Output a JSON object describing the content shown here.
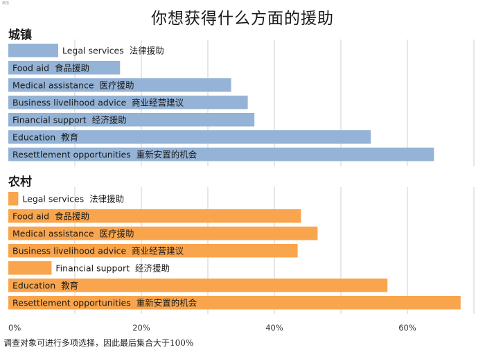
{
  "corner_mark": "典范",
  "footnote": "调查对象可进行多项选择，因此最后集合大于100%",
  "chart_data": [
    {
      "type": "bar",
      "orientation": "horizontal",
      "title": "你想获得什么方面的援助",
      "panel": "城镇",
      "color": "#94b3d6",
      "categories": [
        "Legal services  法律援助",
        "Food aid  食品援助",
        "Medical assistance  医疗援助",
        "Business livelihood advice  商业经营建议",
        "Financial support  经济援助",
        "Education  教育",
        "Resettlement opportunities  重新安置的机会"
      ],
      "label_inside": [
        false,
        true,
        true,
        true,
        true,
        true,
        true
      ],
      "values": [
        7.5,
        16.8,
        33.5,
        36,
        37,
        54.5,
        64
      ],
      "xlim": [
        0,
        70
      ],
      "grid": true
    },
    {
      "type": "bar",
      "orientation": "horizontal",
      "panel": "农村",
      "color": "#f9a54d",
      "categories": [
        "Legal services  法律援助",
        "Food aid  食品援助",
        "Medical assistance  医疗援助",
        "Business livelihood advice  商业经营建议",
        "Financial support  经济援助",
        "Education  教育",
        "Resettlement opportunities  重新安置的机会"
      ],
      "label_inside": [
        false,
        true,
        true,
        true,
        false,
        true,
        true
      ],
      "values": [
        1.5,
        44,
        46.5,
        43.5,
        6.5,
        57,
        68
      ],
      "xlim": [
        0,
        70
      ],
      "xticks": [
        0,
        20,
        40,
        60
      ],
      "xtick_labels": [
        "0%",
        "20%",
        "40%",
        "60%"
      ],
      "grid": true
    }
  ]
}
